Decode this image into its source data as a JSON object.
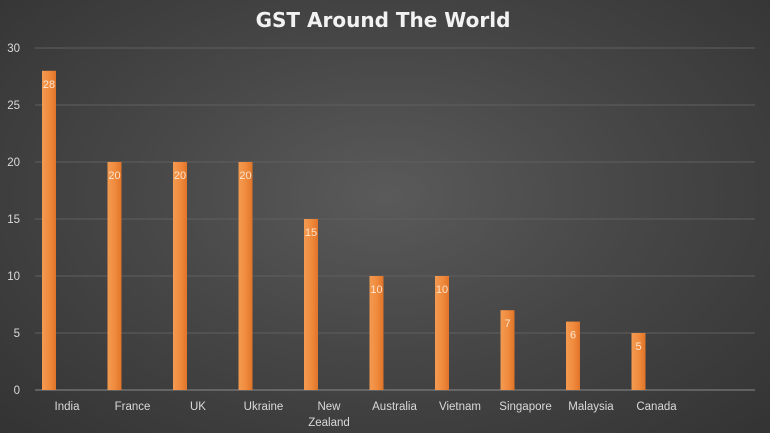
{
  "chart_data": {
    "type": "bar",
    "title": "GST Around The World",
    "categories": [
      "India",
      "France",
      "UK",
      "Ukraine",
      "New Zealand",
      "Australia",
      "Vietnam",
      "Singapore",
      "Malaysia",
      "Canada"
    ],
    "category_lines": [
      [
        "India"
      ],
      [
        "France"
      ],
      [
        "UK"
      ],
      [
        "Ukraine"
      ],
      [
        "New",
        "Zealand"
      ],
      [
        "Australia"
      ],
      [
        "Vietnam"
      ],
      [
        "Singapore"
      ],
      [
        "Malaysia"
      ],
      [
        "Canada"
      ]
    ],
    "values": [
      28,
      20,
      20,
      20,
      15,
      10,
      10,
      7,
      6,
      5
    ],
    "data_labels": [
      "28",
      "20",
      "20",
      "20",
      "15",
      "10",
      "10",
      "7",
      "6",
      "5"
    ],
    "yticks": [
      "0",
      "5",
      "10",
      "15",
      "20",
      "25",
      "30"
    ],
    "ylim": [
      0,
      30
    ],
    "xlabel": "",
    "ylabel": "",
    "grid": true,
    "legend": "none",
    "bar_color": "#f08a3c",
    "bar_color_light": "#f7a867",
    "background_color": "#474747"
  }
}
